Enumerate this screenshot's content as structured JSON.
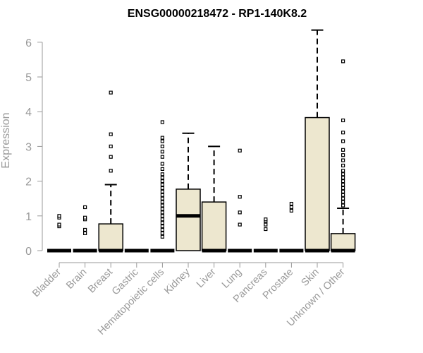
{
  "chart_data": {
    "type": "boxplot",
    "title": "ENSG00000218472 - RP1-140K8.2",
    "xlabel": "",
    "ylabel": "Expression",
    "ylim": [
      0,
      6.5
    ],
    "yticks": [
      0,
      1,
      2,
      3,
      4,
      5,
      6
    ],
    "colors": {
      "box_fill": "#ede7cf",
      "box_stroke": "#000000",
      "axis": "#999999",
      "title": "#000000"
    },
    "categories": [
      "Bladder",
      "Brain",
      "Breast",
      "Gastric",
      "Hematopoietic cells",
      "Kidney",
      "Liver",
      "Lung",
      "Pancreas",
      "Prostate",
      "Skin",
      "Unknown / Other"
    ],
    "boxes": [
      {
        "category": "Bladder",
        "q1": 0,
        "median": 0,
        "q3": 0,
        "whisker_low": 0,
        "whisker_high": 0,
        "outliers": [
          0.7,
          0.75,
          0.95,
          1.0
        ]
      },
      {
        "category": "Brain",
        "q1": 0,
        "median": 0,
        "q3": 0,
        "whisker_low": 0,
        "whisker_high": 0,
        "outliers": [
          0.5,
          0.6,
          0.9,
          0.95,
          1.25
        ]
      },
      {
        "category": "Breast",
        "q1": 0,
        "median": 0,
        "q3": 0.77,
        "whisker_low": 0,
        "whisker_high": 1.9,
        "outliers": [
          2.3,
          2.7,
          3.0,
          3.35,
          4.55
        ]
      },
      {
        "category": "Gastric",
        "q1": 0,
        "median": 0,
        "q3": 0,
        "whisker_low": 0,
        "whisker_high": 0,
        "outliers": []
      },
      {
        "category": "Hematopoietic cells",
        "q1": 0,
        "median": 0,
        "q3": 0,
        "whisker_low": 0,
        "whisker_high": 0,
        "outliers": [
          0.4,
          0.5,
          0.6,
          0.7,
          0.8,
          0.9,
          1.0,
          1.1,
          1.2,
          1.3,
          1.4,
          1.5,
          1.6,
          1.7,
          1.8,
          1.9,
          2.0,
          2.1,
          2.2,
          2.35,
          2.5,
          2.7,
          2.85,
          3.0,
          3.15,
          3.25,
          3.7
        ]
      },
      {
        "category": "Kidney",
        "q1": 0,
        "median": 1.0,
        "q3": 1.77,
        "whisker_low": 0,
        "whisker_high": 3.38,
        "outliers": []
      },
      {
        "category": "Liver",
        "q1": 0,
        "median": 0,
        "q3": 1.4,
        "whisker_low": 0,
        "whisker_high": 3.0,
        "outliers": []
      },
      {
        "category": "Lung",
        "q1": 0,
        "median": 0,
        "q3": 0,
        "whisker_low": 0,
        "whisker_high": 0,
        "outliers": [
          0.75,
          1.1,
          1.55,
          2.88
        ]
      },
      {
        "category": "Pancreas",
        "q1": 0,
        "median": 0,
        "q3": 0,
        "whisker_low": 0,
        "whisker_high": 0,
        "outliers": [
          0.62,
          0.75,
          0.85,
          0.9
        ]
      },
      {
        "category": "Prostate",
        "q1": 0,
        "median": 0,
        "q3": 0,
        "whisker_low": 0,
        "whisker_high": 0,
        "outliers": [
          1.15,
          1.25,
          1.35
        ]
      },
      {
        "category": "Skin",
        "q1": 0,
        "median": 0,
        "q3": 3.83,
        "whisker_low": 0,
        "whisker_high": 6.35,
        "outliers": []
      },
      {
        "category": "Unknown / Other",
        "q1": 0,
        "median": 0,
        "q3": 0.49,
        "whisker_low": 0,
        "whisker_high": 1.22,
        "outliers": [
          1.3,
          1.4,
          1.5,
          1.6,
          1.7,
          1.8,
          1.9,
          2.0,
          2.1,
          2.2,
          2.3,
          2.45,
          2.6,
          2.75,
          2.9,
          3.15,
          3.4,
          3.75,
          5.45
        ]
      }
    ]
  }
}
